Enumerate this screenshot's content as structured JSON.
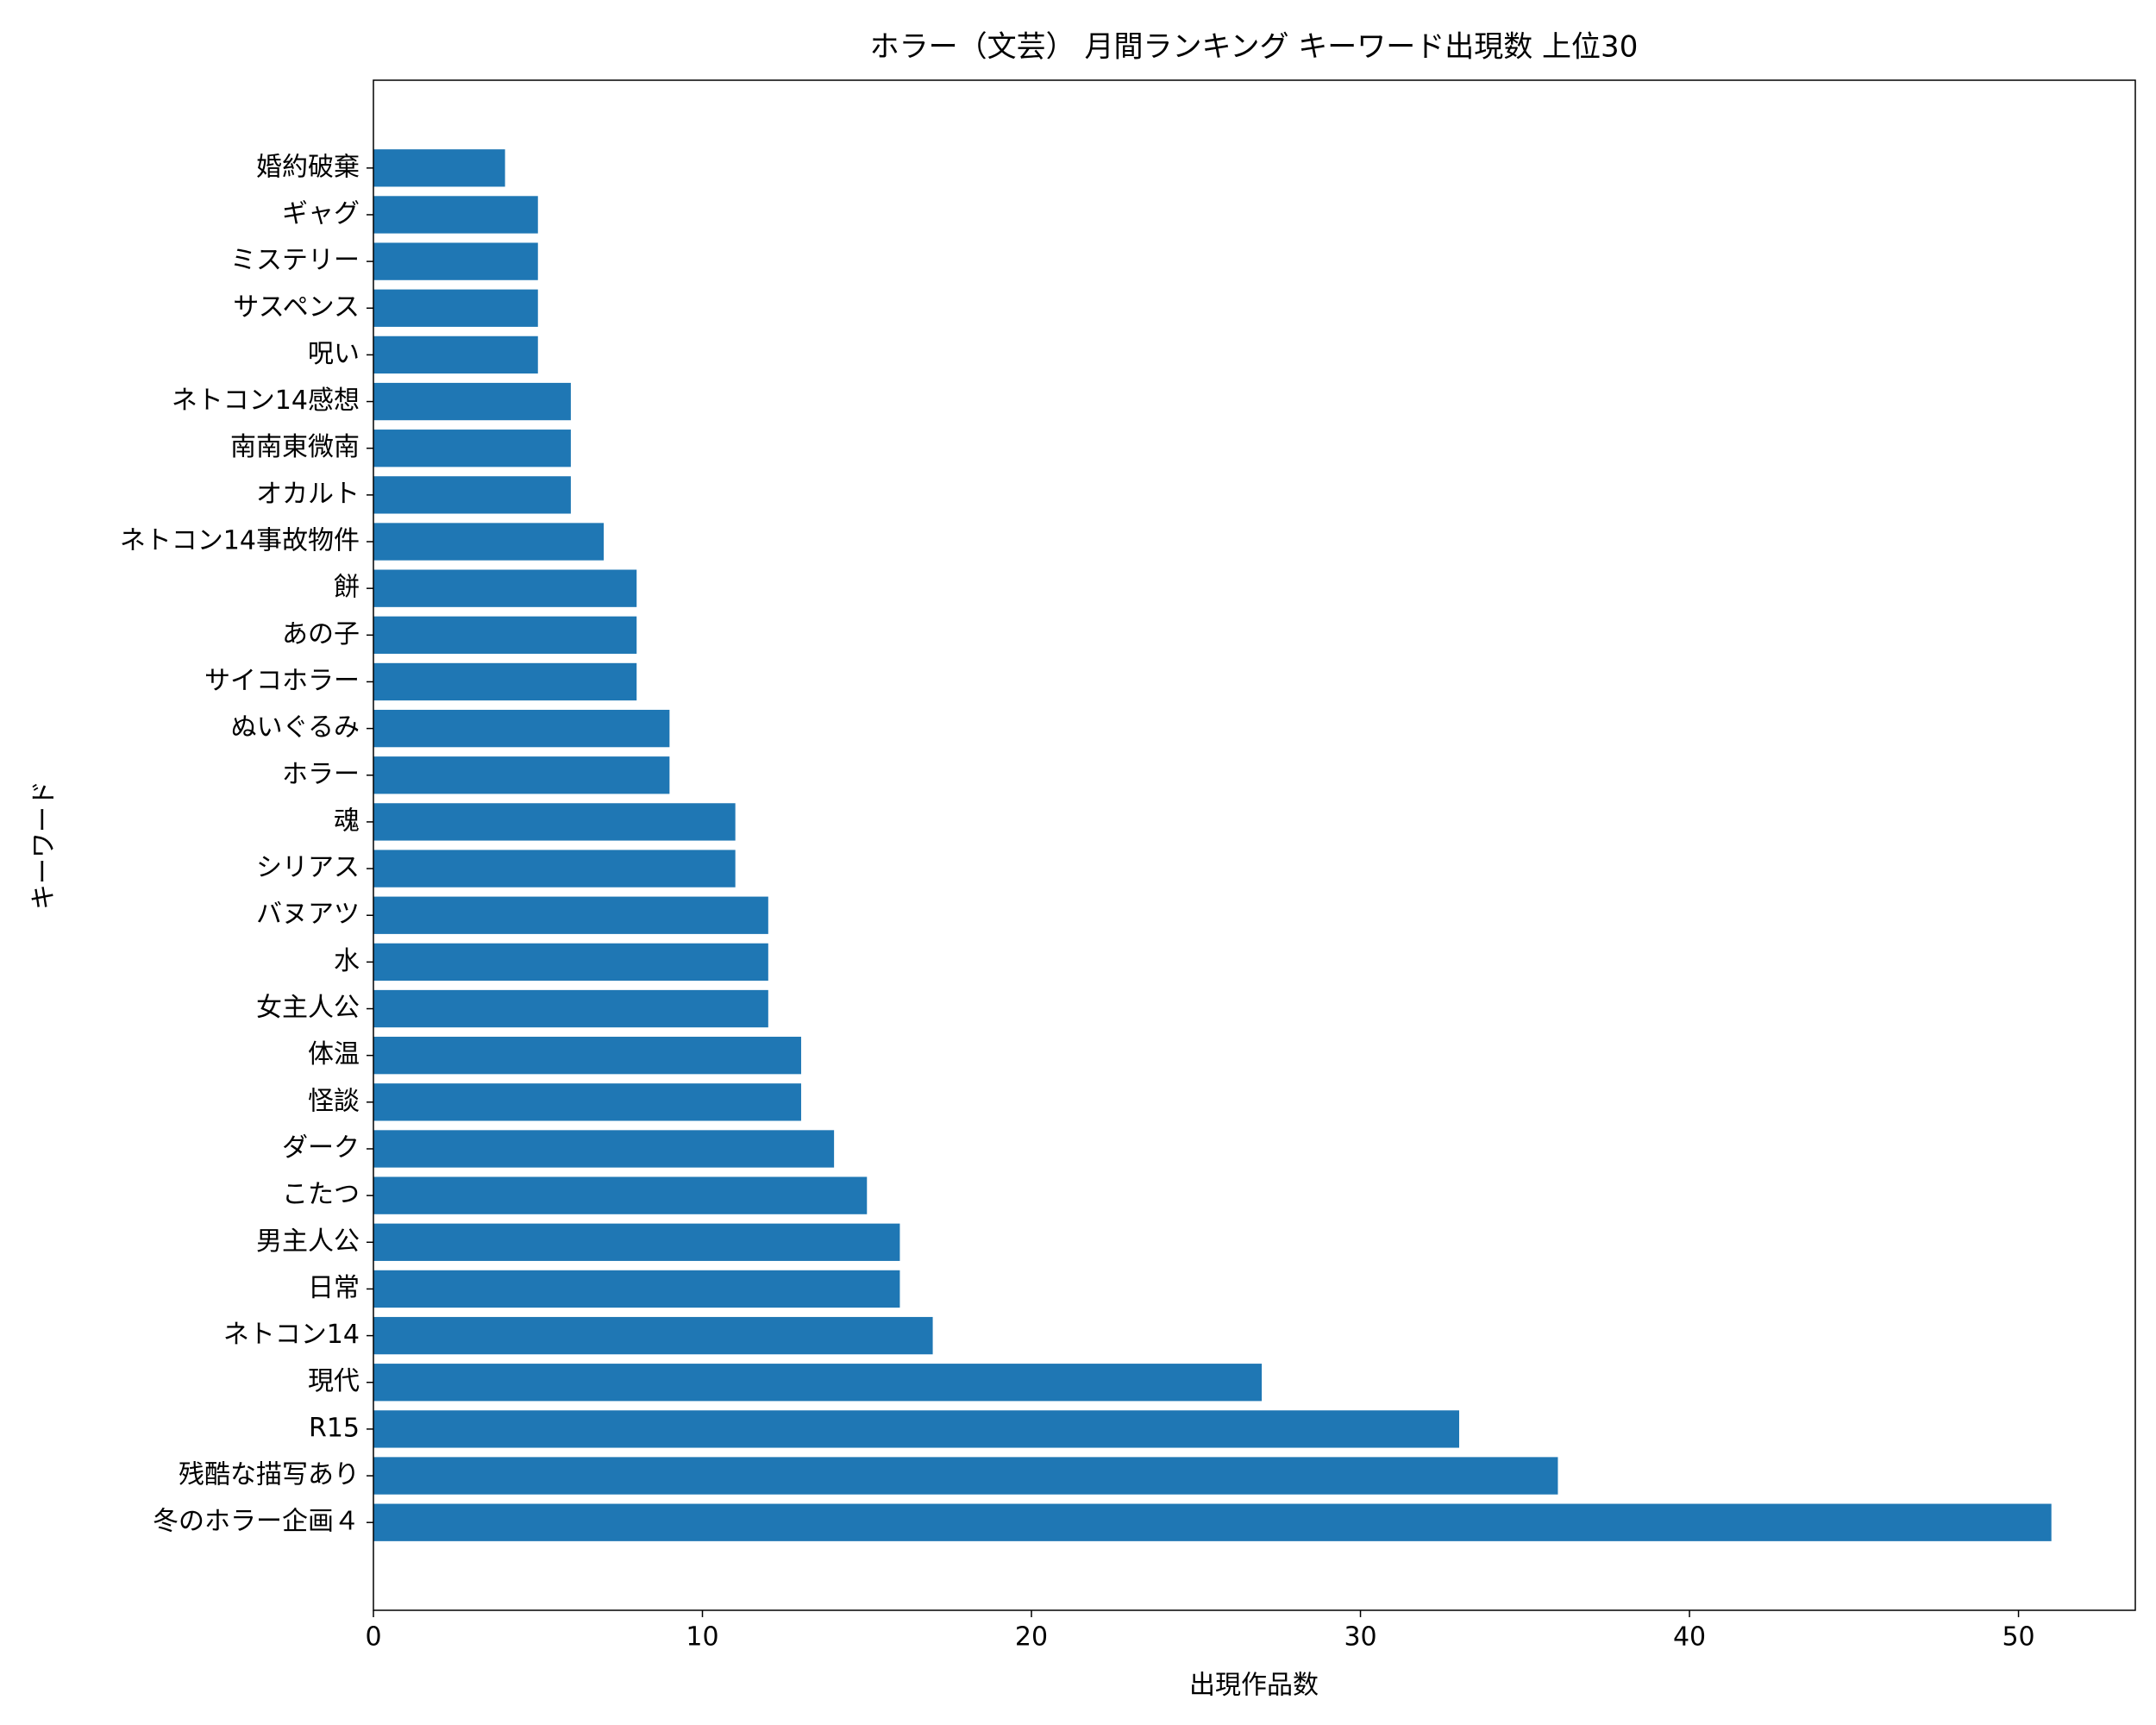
{
  "chart_data": {
    "type": "barh",
    "title": "ホラー（文芸） 月間ランキング キーワード出現数 上位30",
    "x_label": "出現作品数",
    "y_label": "キーワード",
    "categories": [
      "冬のホラー企画４",
      "残酷な描写あり",
      "R15",
      "現代",
      "ネトコン14",
      "日常",
      "男主人公",
      "こたつ",
      "ダーク",
      "怪談",
      "体温",
      "女主人公",
      "水",
      "バヌアツ",
      "シリアス",
      "魂",
      "ホラー",
      "ぬいぐるみ",
      "サイコホラー",
      "あの子",
      "餅",
      "ネトコン14事故物件",
      "オカルト",
      "南南東微南",
      "ネトコン14感想",
      "呪い",
      "サスペンス",
      "ミステリー",
      "ギャグ",
      "婚約破棄"
    ],
    "values": [
      51,
      36,
      33,
      27,
      17,
      16,
      16,
      15,
      14,
      13,
      13,
      12,
      12,
      12,
      11,
      11,
      9,
      9,
      8,
      8,
      8,
      7,
      6,
      6,
      6,
      5,
      5,
      5,
      5,
      4
    ],
    "color": "#1f77b4",
    "xlim": [
      0,
      53.55
    ],
    "xticks": [
      0,
      10,
      20,
      30,
      40,
      50
    ],
    "grid": false
  }
}
